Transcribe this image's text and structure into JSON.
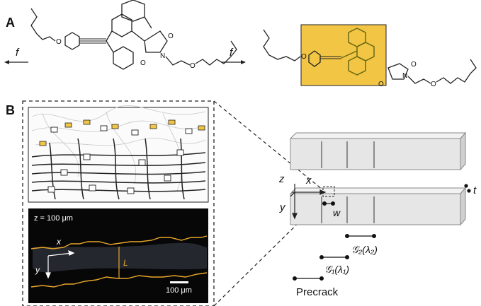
{
  "panel_a": {
    "label": "A",
    "force_left": "f",
    "force_right": "f",
    "carbonyl_label": "O",
    "nitrogen_label": "N",
    "highlight_color": "#f2c544"
  },
  "panel_b": {
    "label": "B",
    "micrograph": {
      "depth": "z = 100 μm",
      "axis_x": "x",
      "axis_y": "y",
      "thickness": "L",
      "scale_bar": "100 μm"
    },
    "schematic": {
      "axis_z": "z",
      "axis_x": "x",
      "axis_y": "y",
      "width": "w",
      "thickness": "t",
      "energy_2": "𝒢₂(λ₂)",
      "energy_1": "𝒢₁(λ₁)",
      "precrack": "Precrack"
    }
  },
  "colors": {
    "crack_line": "#e9a72a",
    "beam_face": "#e6e6e6",
    "bond": "#222222"
  }
}
